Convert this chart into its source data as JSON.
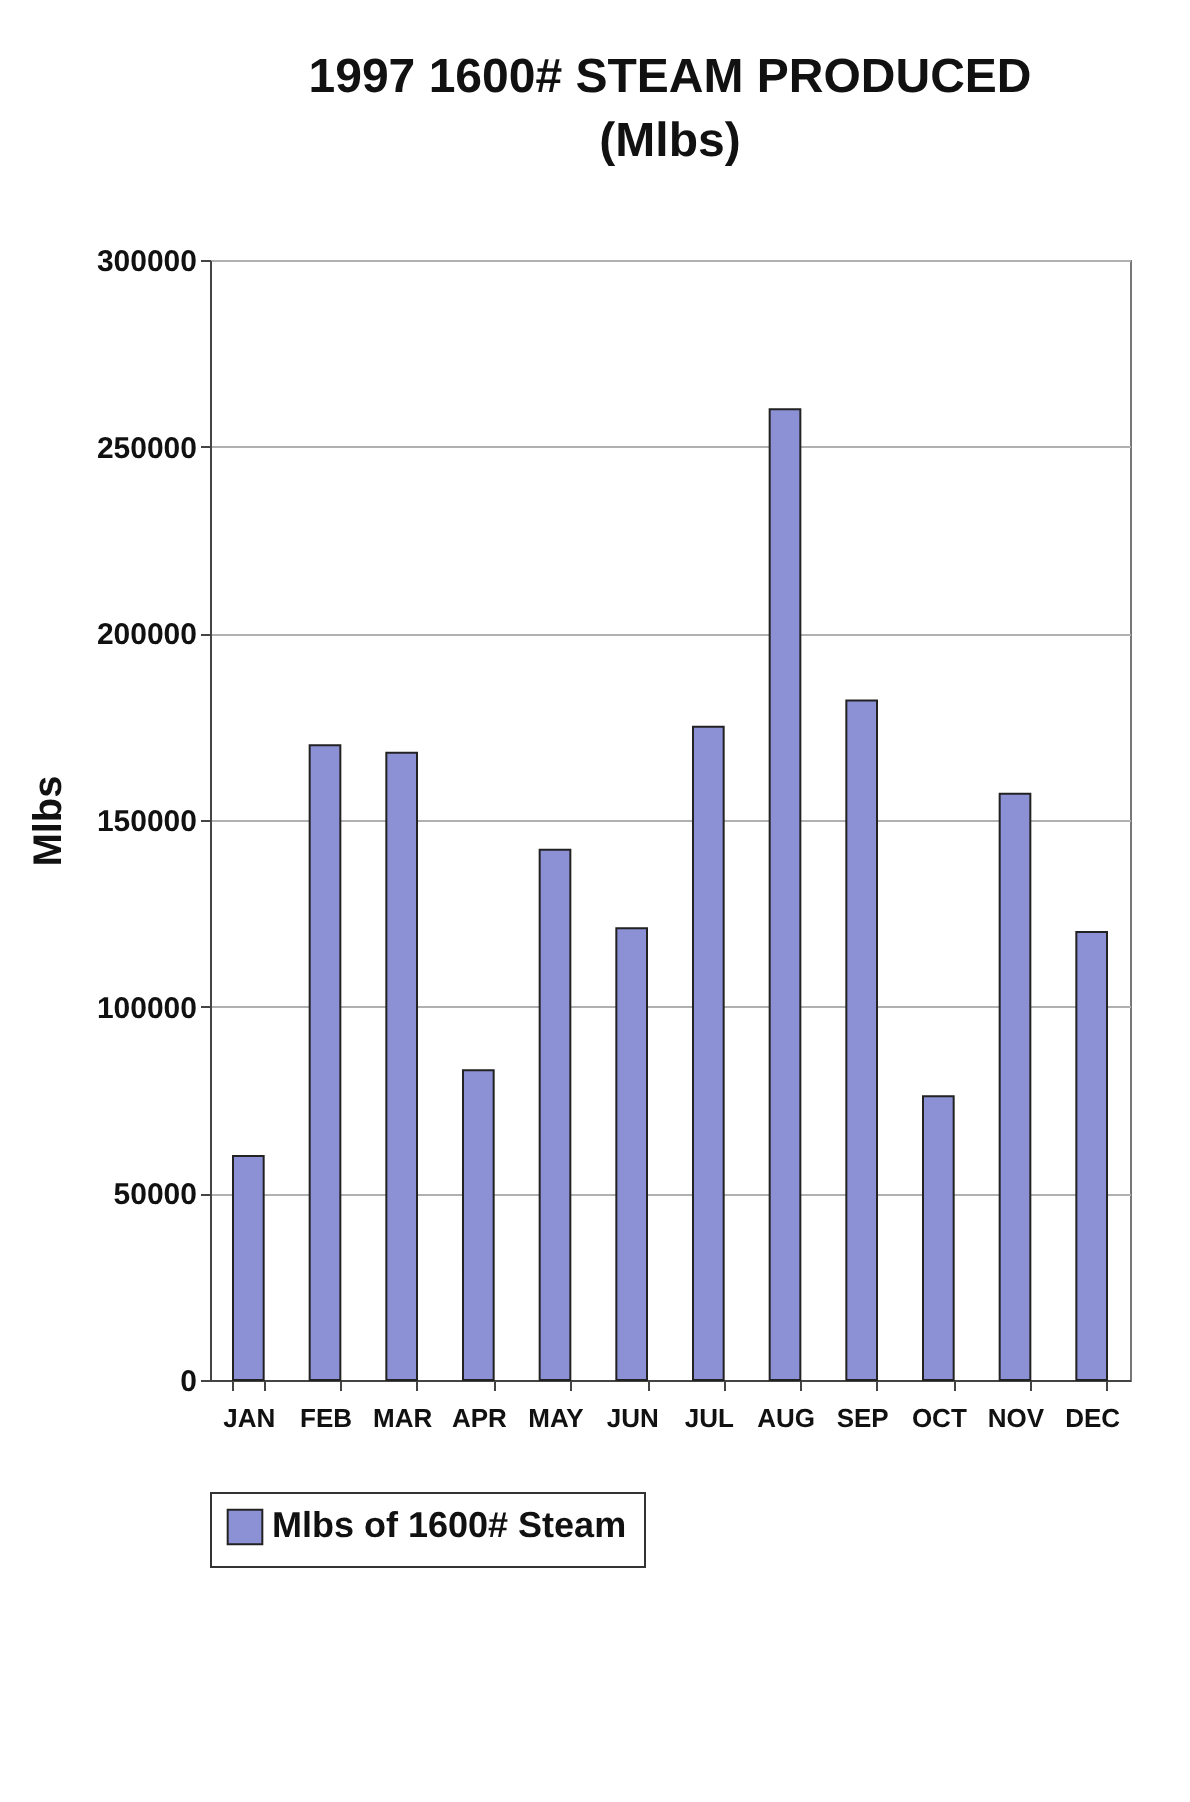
{
  "chart_data": {
    "type": "bar",
    "title": "1997 1600# STEAM PRODUCED",
    "subtitle": "(Mlbs)",
    "ylabel": "Mlbs",
    "categories": [
      "JAN",
      "FEB",
      "MAR",
      "APR",
      "MAY",
      "JUN",
      "JUL",
      "AUG",
      "SEP",
      "OCT",
      "NOV",
      "DEC"
    ],
    "series": [
      {
        "name": "Mlbs of 1600# Steam",
        "color": "#8c90d4",
        "values": [
          60000,
          170000,
          168000,
          83000,
          142000,
          121000,
          175000,
          260000,
          182000,
          76000,
          157000,
          120000
        ]
      }
    ],
    "ylim": [
      0,
      300000
    ],
    "yticks": [
      0,
      50000,
      100000,
      150000,
      200000,
      250000,
      300000
    ],
    "grid": "y",
    "legend": "bottom"
  }
}
